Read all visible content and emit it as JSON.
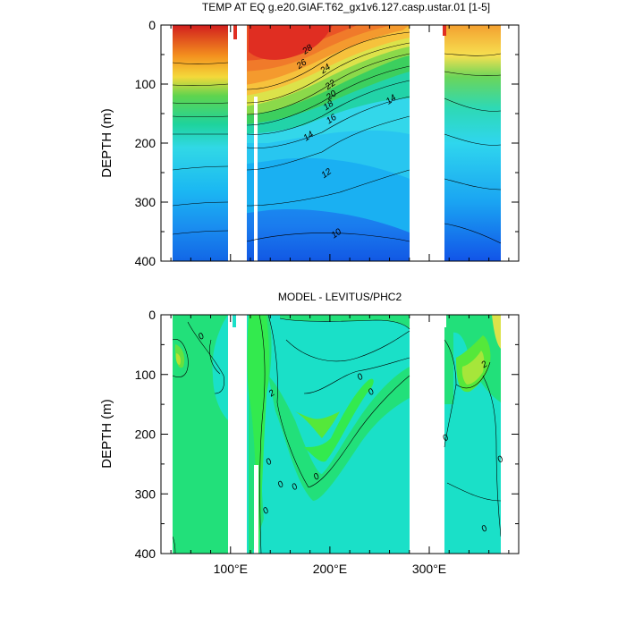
{
  "chart_data": [
    {
      "type": "contour",
      "title": "TEMP AT EQ g.e20.GIAF.T62_gx1v6.127.casp.ustar.01 [1-5]",
      "ylabel": "DEPTH (m)",
      "xlabel": "",
      "xlim": [
        30,
        390
      ],
      "ylim": [
        400,
        0
      ],
      "x_ticks": [
        {
          "value": 100,
          "label": "100°E"
        },
        {
          "value": 200,
          "label": "200°E"
        },
        {
          "value": 300,
          "label": "300°E"
        }
      ],
      "y_ticks": [
        {
          "value": 0,
          "label": "0"
        },
        {
          "value": 100,
          "label": "100"
        },
        {
          "value": 200,
          "label": "200"
        },
        {
          "value": 300,
          "label": "300"
        },
        {
          "value": 400,
          "label": "400"
        }
      ],
      "contour_labels": [
        {
          "text": "28",
          "lon": 179,
          "depth": 45
        },
        {
          "text": "26",
          "lon": 173,
          "depth": 70
        },
        {
          "text": "24",
          "lon": 197,
          "depth": 78
        },
        {
          "text": "22",
          "lon": 202,
          "depth": 105
        },
        {
          "text": "20",
          "lon": 203,
          "depth": 123
        },
        {
          "text": "18",
          "lon": 200,
          "depth": 140
        },
        {
          "text": "16",
          "lon": 203,
          "depth": 163
        },
        {
          "text": "14",
          "lon": 180,
          "depth": 192
        },
        {
          "text": "14",
          "lon": 263,
          "depth": 130
        },
        {
          "text": "12",
          "lon": 198,
          "depth": 255
        },
        {
          "text": "10",
          "lon": 208,
          "depth": 357
        }
      ]
    },
    {
      "type": "contour",
      "title": "MODEL - LEVITUS/PHC2",
      "ylabel": "DEPTH (m)",
      "xlabel": "",
      "xlim": [
        30,
        390
      ],
      "ylim": [
        400,
        0
      ],
      "x_ticks": [
        {
          "value": 100,
          "label": "100°E"
        },
        {
          "value": 200,
          "label": "200°E"
        },
        {
          "value": 300,
          "label": "300°E"
        }
      ],
      "y_ticks": [
        {
          "value": 0,
          "label": "0"
        },
        {
          "value": 100,
          "label": "100"
        },
        {
          "value": 200,
          "label": "200"
        },
        {
          "value": 300,
          "label": "300"
        },
        {
          "value": 400,
          "label": "400"
        }
      ],
      "contour_labels": [
        {
          "text": "0",
          "lon": 72,
          "depth": 40
        },
        {
          "text": "0",
          "lon": 232,
          "depth": 108
        },
        {
          "text": "0",
          "lon": 243,
          "depth": 133
        },
        {
          "text": "2",
          "lon": 143,
          "depth": 135
        },
        {
          "text": "0",
          "lon": 140,
          "depth": 250
        },
        {
          "text": "0",
          "lon": 152,
          "depth": 288
        },
        {
          "text": "0",
          "lon": 166,
          "depth": 292
        },
        {
          "text": "0",
          "lon": 137,
          "depth": 332
        },
        {
          "text": "0",
          "lon": 188,
          "depth": 275
        },
        {
          "text": "2",
          "lon": 357,
          "depth": 87
        },
        {
          "text": "0",
          "lon": 318,
          "depth": 210
        },
        {
          "text": "0",
          "lon": 373,
          "depth": 246
        },
        {
          "text": "0",
          "lon": 357,
          "depth": 362
        }
      ]
    }
  ]
}
